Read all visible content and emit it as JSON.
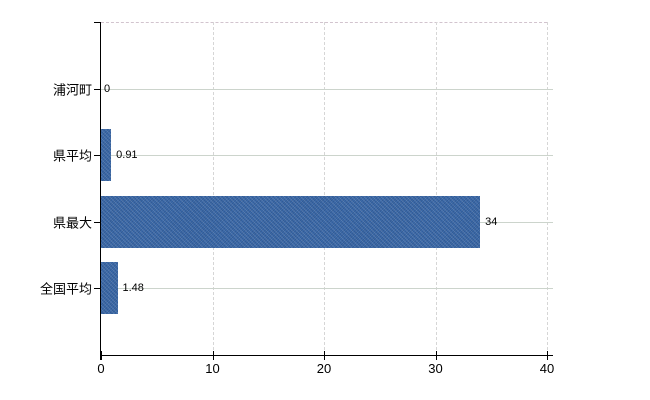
{
  "chart_data": {
    "type": "bar",
    "orientation": "horizontal",
    "categories": [
      "浦河町",
      "県平均",
      "県最大",
      "全国平均"
    ],
    "values": [
      0,
      0.91,
      34,
      1.48
    ],
    "value_labels": [
      "0",
      "0.91",
      "34",
      "1.48"
    ],
    "x_ticks": [
      0,
      10,
      20,
      30,
      40
    ],
    "x_tick_labels": [
      "0",
      "10",
      "20",
      "30",
      "40"
    ],
    "xlim": [
      0,
      40
    ],
    "title": "",
    "xlabel": "",
    "ylabel": "",
    "grid": "on",
    "legend": "none",
    "colors": {
      "bar": "#3b6aab",
      "axis": "#000000",
      "gridline_horizontal": "#ccd4cc",
      "gridline_vertical": "#d6d6d6",
      "plot_top_border": "#d2c4ce",
      "background": "#ffffff",
      "text": "#000000"
    }
  }
}
